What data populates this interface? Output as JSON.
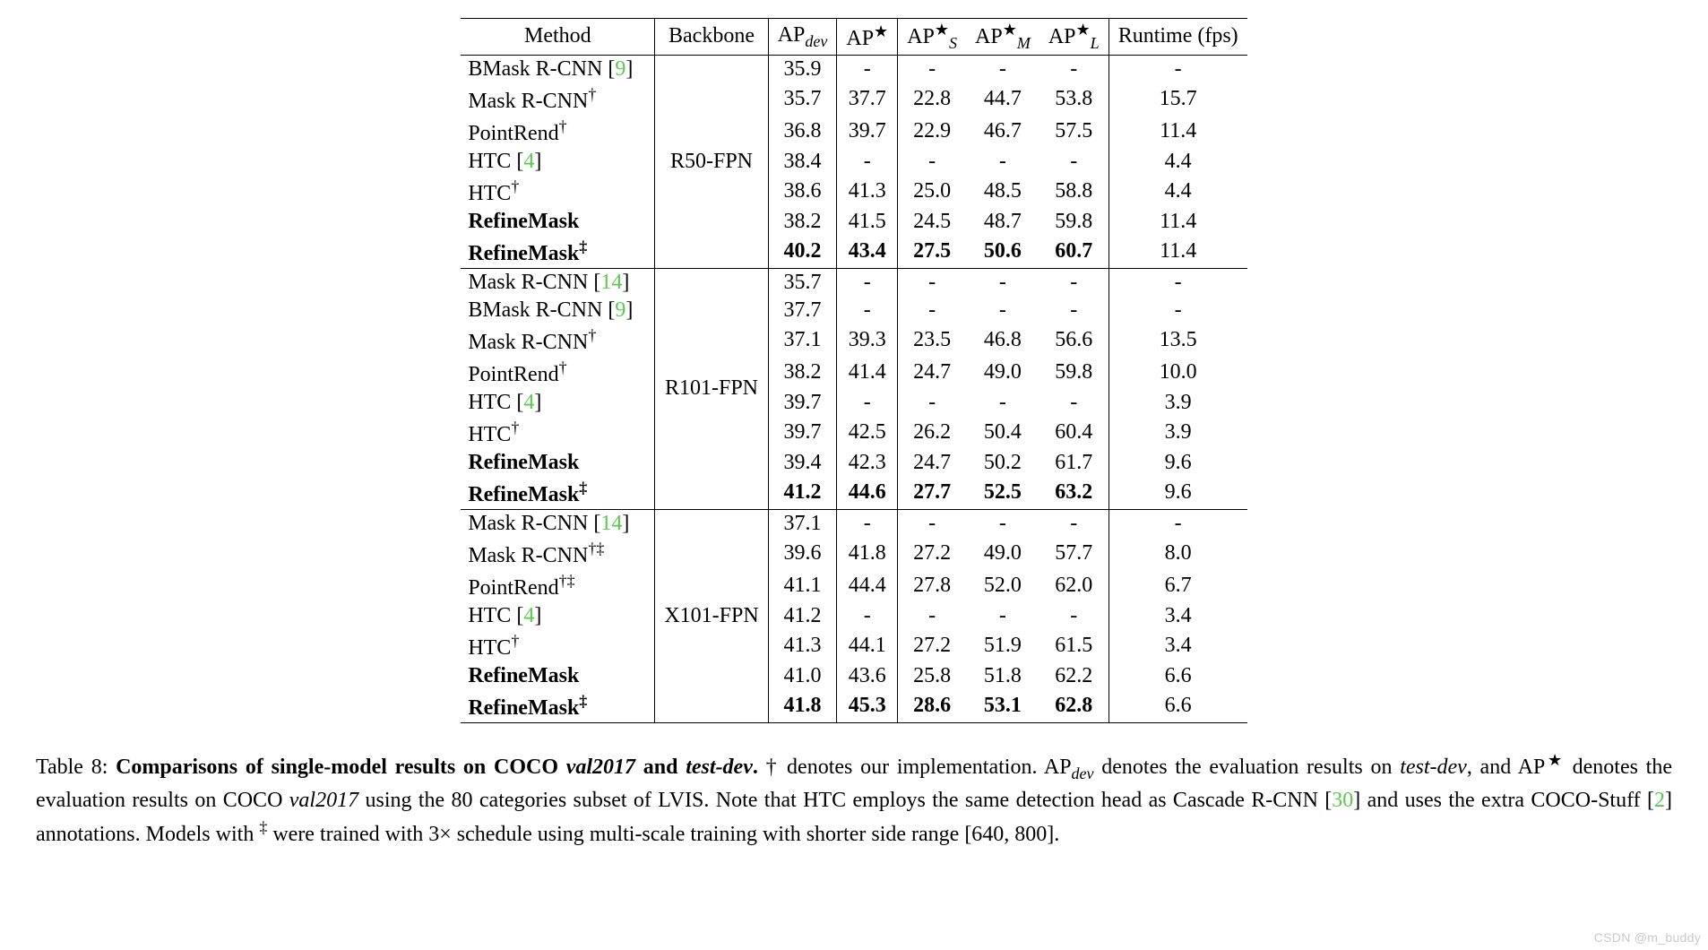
{
  "headers": {
    "method": "Method",
    "backbone": "Backbone",
    "ap_dev": "AP",
    "ap_dev_sub": "dev",
    "ap_star": "AP",
    "ap_s": "AP",
    "ap_s_sub": "S",
    "ap_m": "AP",
    "ap_m_sub": "M",
    "ap_l": "AP",
    "ap_l_sub": "L",
    "runtime": "Runtime (fps)"
  },
  "backbones": [
    "R50-FPN",
    "R101-FPN",
    "X101-FPN"
  ],
  "group1": [
    {
      "method_pre": "BMask R-CNN [",
      "cite": "9",
      "method_post": "]",
      "bold": false,
      "ap_dev": "35.9",
      "ap": "-",
      "aps": "-",
      "apm": "-",
      "apl": "-",
      "rt": "-"
    },
    {
      "method_pre": "Mask R-CNN",
      "sup": "†",
      "bold": false,
      "ap_dev": "35.7",
      "ap": "37.7",
      "aps": "22.8",
      "apm": "44.7",
      "apl": "53.8",
      "rt": "15.7"
    },
    {
      "method_pre": "PointRend",
      "sup": "†",
      "bold": false,
      "ap_dev": "36.8",
      "ap": "39.7",
      "aps": "22.9",
      "apm": "46.7",
      "apl": "57.5",
      "rt": "11.4"
    },
    {
      "method_pre": "HTC [",
      "cite": "4",
      "method_post": "]",
      "bold": false,
      "ap_dev": "38.4",
      "ap": "-",
      "aps": "-",
      "apm": "-",
      "apl": "-",
      "rt": "4.4"
    },
    {
      "method_pre": "HTC",
      "sup": "†",
      "bold": false,
      "ap_dev": "38.6",
      "ap": "41.3",
      "aps": "25.0",
      "apm": "48.5",
      "apl": "58.8",
      "rt": "4.4"
    },
    {
      "method_pre": "RefineMask",
      "bold": true,
      "bold_method": true,
      "ap_dev": "38.2",
      "ap": "41.5",
      "aps": "24.5",
      "apm": "48.7",
      "apl": "59.8",
      "rt": "11.4"
    },
    {
      "method_pre": "RefineMask",
      "sup": "‡",
      "bold": true,
      "bold_method": true,
      "bold_vals": true,
      "ap_dev": "40.2",
      "ap": "43.4",
      "aps": "27.5",
      "apm": "50.6",
      "apl": "60.7",
      "rt": "11.4"
    }
  ],
  "group2": [
    {
      "method_pre": "Mask R-CNN [",
      "cite": "14",
      "method_post": "]",
      "bold": false,
      "ap_dev": "35.7",
      "ap": "-",
      "aps": "-",
      "apm": "-",
      "apl": "-",
      "rt": "-"
    },
    {
      "method_pre": "BMask R-CNN [",
      "cite": "9",
      "method_post": "]",
      "bold": false,
      "ap_dev": "37.7",
      "ap": "-",
      "aps": "-",
      "apm": "-",
      "apl": "-",
      "rt": "-"
    },
    {
      "method_pre": "Mask R-CNN",
      "sup": "†",
      "bold": false,
      "ap_dev": "37.1",
      "ap": "39.3",
      "aps": "23.5",
      "apm": "46.8",
      "apl": "56.6",
      "rt": "13.5"
    },
    {
      "method_pre": "PointRend",
      "sup": "†",
      "bold": false,
      "ap_dev": "38.2",
      "ap": "41.4",
      "aps": "24.7",
      "apm": "49.0",
      "apl": "59.8",
      "rt": "10.0"
    },
    {
      "method_pre": "HTC [",
      "cite": "4",
      "method_post": "]",
      "bold": false,
      "ap_dev": "39.7",
      "ap": "-",
      "aps": "-",
      "apm": "-",
      "apl": "-",
      "rt": "3.9"
    },
    {
      "method_pre": "HTC",
      "sup": "†",
      "bold": false,
      "ap_dev": "39.7",
      "ap": "42.5",
      "aps": "26.2",
      "apm": "50.4",
      "apl": "60.4",
      "rt": "3.9"
    },
    {
      "method_pre": "RefineMask",
      "bold": true,
      "bold_method": true,
      "ap_dev": "39.4",
      "ap": "42.3",
      "aps": "24.7",
      "apm": "50.2",
      "apl": "61.7",
      "rt": "9.6"
    },
    {
      "method_pre": "RefineMask",
      "sup": "‡",
      "bold": true,
      "bold_method": true,
      "bold_vals": true,
      "ap_dev": "41.2",
      "ap": "44.6",
      "aps": "27.7",
      "apm": "52.5",
      "apl": "63.2",
      "rt": "9.6"
    }
  ],
  "group3": [
    {
      "method_pre": "Mask R-CNN [",
      "cite": "14",
      "method_post": "]",
      "bold": false,
      "ap_dev": "37.1",
      "ap": "-",
      "aps": "-",
      "apm": "-",
      "apl": "-",
      "rt": "-"
    },
    {
      "method_pre": "Mask R-CNN",
      "sup": "†‡",
      "bold": false,
      "ap_dev": "39.6",
      "ap": "41.8",
      "aps": "27.2",
      "apm": "49.0",
      "apl": "57.7",
      "rt": "8.0"
    },
    {
      "method_pre": "PointRend",
      "sup": "†‡",
      "bold": false,
      "ap_dev": "41.1",
      "ap": "44.4",
      "aps": "27.8",
      "apm": "52.0",
      "apl": "62.0",
      "rt": "6.7"
    },
    {
      "method_pre": "HTC [",
      "cite": "4",
      "method_post": "]",
      "bold": false,
      "ap_dev": "41.2",
      "ap": "-",
      "aps": "-",
      "apm": "-",
      "apl": "-",
      "rt": "3.4"
    },
    {
      "method_pre": "HTC",
      "sup": "†",
      "bold": false,
      "ap_dev": "41.3",
      "ap": "44.1",
      "aps": "27.2",
      "apm": "51.9",
      "apl": "61.5",
      "rt": "3.4"
    },
    {
      "method_pre": "RefineMask",
      "bold": true,
      "bold_method": true,
      "ap_dev": "41.0",
      "ap": "43.6",
      "aps": "25.8",
      "apm": "51.8",
      "apl": "62.2",
      "rt": "6.6"
    },
    {
      "method_pre": "RefineMask",
      "sup": "‡",
      "bold": true,
      "bold_method": true,
      "bold_vals": true,
      "ap_dev": "41.8",
      "ap": "45.3",
      "aps": "28.6",
      "apm": "53.1",
      "apl": "62.8",
      "rt": "6.6"
    }
  ],
  "caption": {
    "label": "Table 8: ",
    "title_bold": "Comparisons of single-model results on COCO ",
    "title_ital1": "val2017",
    "title_bold2": " and ",
    "title_ital2": "test-dev",
    "title_bold3": ".",
    "l1a": " † denotes our implementation. AP",
    "l1b": " denotes the evaluation results on ",
    "l1c": ", and AP",
    "l1d": " denotes the evaluation results on COCO ",
    "l1e": " using the 80 categories subset of LVIS. Note that HTC employs the same detection head as Cascade R-CNN [",
    "cite30": "30",
    "l1f": "] and uses the extra COCO-Stuff [",
    "cite2": "2",
    "l1g": "] annotations. Models with ",
    "l1h": " were trained with 3× schedule using multi-scale training with shorter side range [640, 800]."
  },
  "watermark": "CSDN @m_buddy",
  "colors": {
    "cite": "#5cc850",
    "text": "#000000",
    "bg": "#ffffff"
  }
}
